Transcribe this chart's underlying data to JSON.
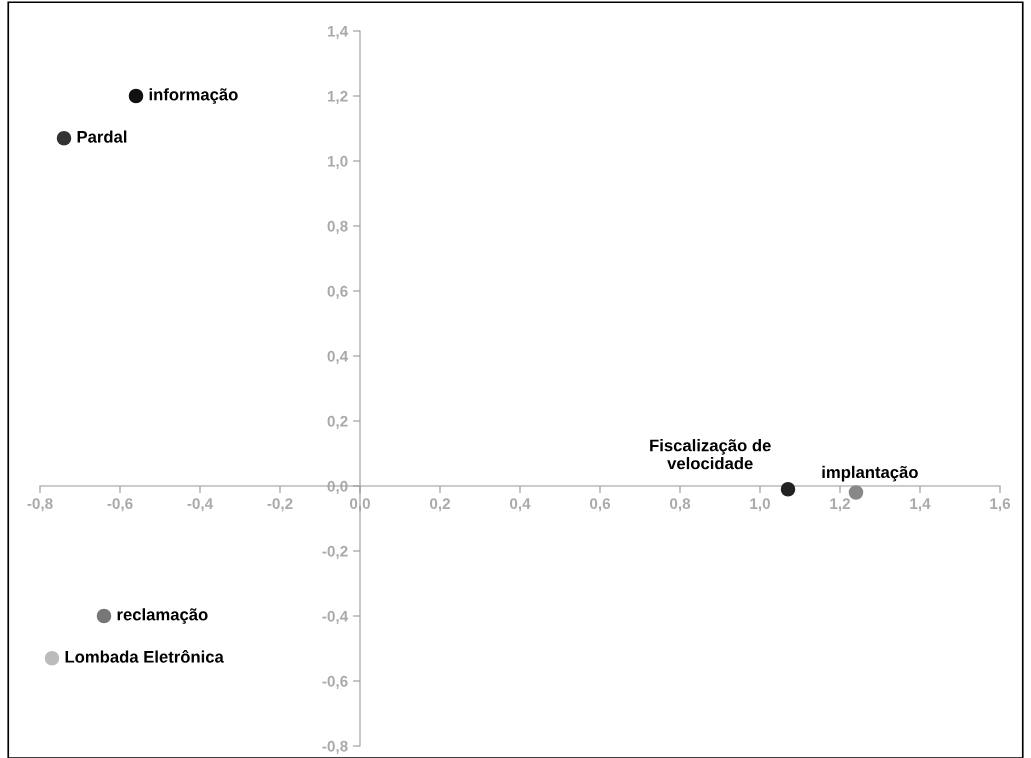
{
  "chart_data": {
    "type": "scatter",
    "xlim": [
      -0.8,
      1.6
    ],
    "ylim": [
      -0.8,
      1.4
    ],
    "xticks": [
      {
        "value": -0.8,
        "label": "-0,8"
      },
      {
        "value": -0.6,
        "label": "-0,6"
      },
      {
        "value": -0.4,
        "label": "-0,4"
      },
      {
        "value": -0.2,
        "label": "-0,2"
      },
      {
        "value": 0,
        "label": "0,0"
      },
      {
        "value": 0.2,
        "label": "0,2"
      },
      {
        "value": 0.4,
        "label": "0,4"
      },
      {
        "value": 0.6,
        "label": "0,6"
      },
      {
        "value": 0.8,
        "label": "0,8"
      },
      {
        "value": 1.0,
        "label": "1,0"
      },
      {
        "value": 1.2,
        "label": "1,2"
      },
      {
        "value": 1.4,
        "label": "1,4"
      },
      {
        "value": 1.6,
        "label": "1,6"
      }
    ],
    "yticks": [
      {
        "value": -0.8,
        "label": "-0,8"
      },
      {
        "value": -0.6,
        "label": "-0,6"
      },
      {
        "value": -0.4,
        "label": "-0,4"
      },
      {
        "value": -0.2,
        "label": "-0,2"
      },
      {
        "value": 0,
        "label": "0,0"
      },
      {
        "value": 0.2,
        "label": "0,2"
      },
      {
        "value": 0.4,
        "label": "0,4"
      },
      {
        "value": 0.6,
        "label": "0,6"
      },
      {
        "value": 0.8,
        "label": "0,8"
      },
      {
        "value": 1.0,
        "label": "1,0"
      },
      {
        "value": 1.2,
        "label": "1,2"
      },
      {
        "value": 1.4,
        "label": "1,4"
      }
    ],
    "grid": false,
    "legend": false,
    "marker": "circle",
    "series": [
      {
        "name": "informação",
        "color": "#111111",
        "x": [
          -0.56
        ],
        "values": [
          1.2
        ]
      },
      {
        "name": "Pardal",
        "color": "#333333",
        "x": [
          -0.74
        ],
        "values": [
          1.07
        ]
      },
      {
        "name": "Fiscalização de\nvelocidade",
        "color": "#222222",
        "x": [
          1.07
        ],
        "values": [
          -0.01
        ]
      },
      {
        "name": "implantação",
        "color": "#888888",
        "x": [
          1.24
        ],
        "values": [
          -0.02
        ]
      },
      {
        "name": "reclamação",
        "color": "#777777",
        "x": [
          -0.64
        ],
        "values": [
          -0.4
        ]
      },
      {
        "name": "Lombada Eletrônica",
        "color": "#bbbbbb",
        "x": [
          -0.77
        ],
        "values": [
          -0.53
        ]
      }
    ]
  }
}
